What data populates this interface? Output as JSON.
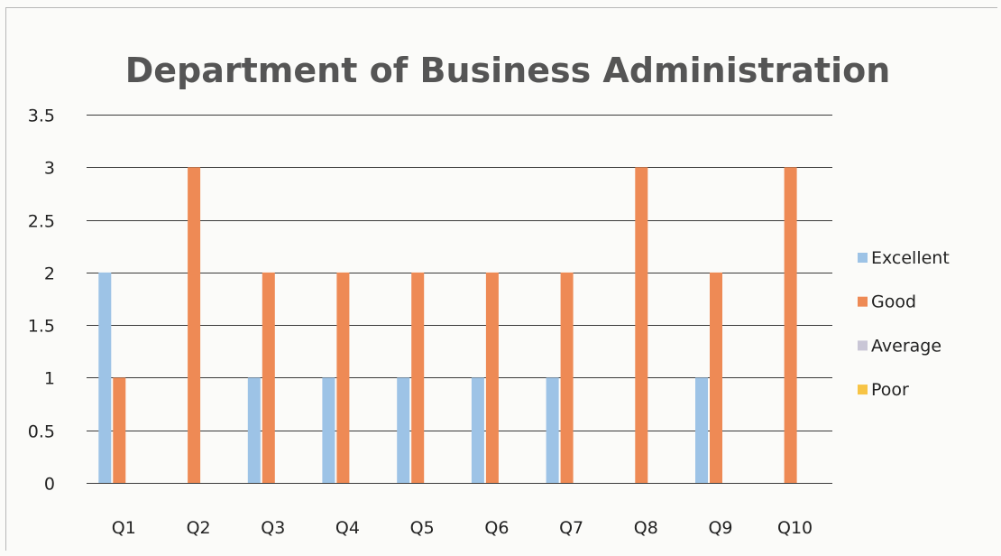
{
  "chart_data": {
    "type": "bar",
    "title": "Department of Business Administration",
    "xlabel": "",
    "ylabel": "",
    "categories": [
      "Q1",
      "Q2",
      "Q3",
      "Q4",
      "Q5",
      "Q6",
      "Q7",
      "Q8",
      "Q9",
      "Q10"
    ],
    "ylim": [
      0,
      3.5
    ],
    "yticks": [
      "0",
      "0.5",
      "1",
      "1.5",
      "2",
      "2.5",
      "3",
      "3.5"
    ],
    "grid": true,
    "legend_position": "right",
    "series": [
      {
        "name": "Excellent",
        "color": "#9dc3e6",
        "values": [
          2,
          0,
          1,
          1,
          1,
          1,
          1,
          0,
          1,
          0
        ]
      },
      {
        "name": "Good",
        "color": "#ee8a55",
        "values": [
          1,
          3,
          2,
          2,
          2,
          2,
          2,
          3,
          2,
          3
        ]
      },
      {
        "name": "Average",
        "color": "#c9c6d6",
        "values": [
          0,
          0,
          0,
          0,
          0,
          0,
          0,
          0,
          0,
          0
        ]
      },
      {
        "name": "Poor",
        "color": "#f7c445",
        "values": [
          0,
          0,
          0,
          0,
          0,
          0,
          0,
          0,
          0,
          0
        ]
      }
    ]
  }
}
